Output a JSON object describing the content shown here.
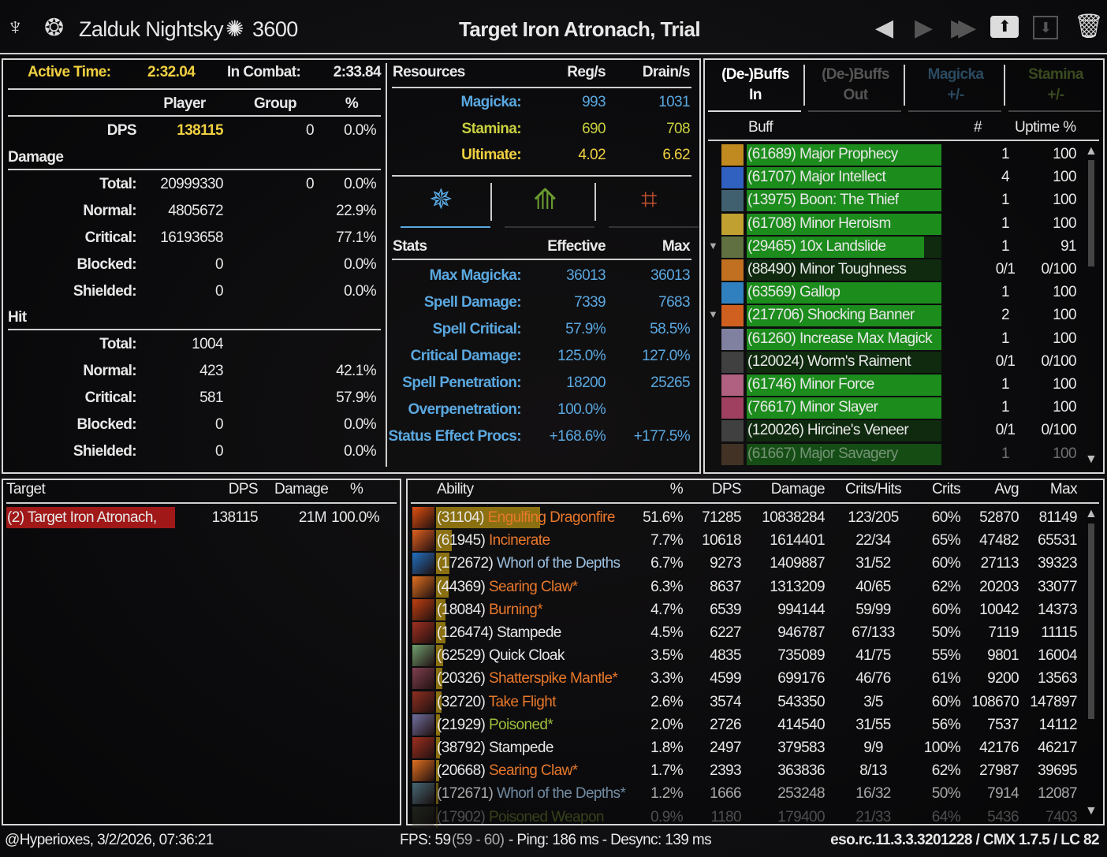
{
  "header": {
    "player_name": "Zalduk Nightsky",
    "champion_points": "3600",
    "title": "Target Iron Atronach, Trial"
  },
  "combat": {
    "active_time_label": "Active Time:",
    "active_time": "2:32.04",
    "in_combat_label": "In Combat:",
    "in_combat": "2:33.84"
  },
  "stats_columns": {
    "player": "Player",
    "group": "Group",
    "pct": "%"
  },
  "dps_row": {
    "label": "DPS",
    "player": "138115",
    "group": "0",
    "pct": "0.0%"
  },
  "damage_section": "Damage",
  "damage_rows": [
    {
      "label": "Total:",
      "player": "20999330",
      "group": "0",
      "pct": "0.0%"
    },
    {
      "label": "Normal:",
      "player": "4805672",
      "group": "",
      "pct": "22.9%"
    },
    {
      "label": "Critical:",
      "player": "16193658",
      "group": "",
      "pct": "77.1%"
    },
    {
      "label": "Blocked:",
      "player": "0",
      "group": "",
      "pct": "0.0%"
    },
    {
      "label": "Shielded:",
      "player": "0",
      "group": "",
      "pct": "0.0%"
    }
  ],
  "hit_section": "Hit",
  "hit_rows": [
    {
      "label": "Total:",
      "player": "1004",
      "group": "",
      "pct": ""
    },
    {
      "label": "Normal:",
      "player": "423",
      "group": "",
      "pct": "42.1%"
    },
    {
      "label": "Critical:",
      "player": "581",
      "group": "",
      "pct": "57.9%"
    },
    {
      "label": "Blocked:",
      "player": "0",
      "group": "",
      "pct": "0.0%"
    },
    {
      "label": "Shielded:",
      "player": "0",
      "group": "",
      "pct": "0.0%"
    }
  ],
  "resources": {
    "title": "Resources",
    "reg": "Reg/s",
    "drain": "Drain/s",
    "rows": [
      {
        "label": "Magicka:",
        "reg": "993",
        "drain": "1031",
        "color": "#5aa8e0"
      },
      {
        "label": "Stamina:",
        "reg": "690",
        "drain": "708",
        "color": "#c8d040"
      },
      {
        "label": "Ultimate:",
        "reg": "4.02",
        "drain": "6.62",
        "color": "#f0d040"
      }
    ]
  },
  "stat_tabs": [
    {
      "icon": "magicka-stat-icon",
      "color": "#5aa8e0"
    },
    {
      "icon": "stamina-stat-icon",
      "color": "#6a9a30"
    },
    {
      "icon": "health-stat-icon",
      "color": "#c05030"
    }
  ],
  "stats": {
    "title": "Stats",
    "effective": "Effective",
    "max": "Max",
    "rows": [
      {
        "label": "Max Magicka:",
        "effective": "36013",
        "max": "36013"
      },
      {
        "label": "Spell Damage:",
        "effective": "7339",
        "max": "7683"
      },
      {
        "label": "Spell Critical:",
        "effective": "57.9%",
        "max": "58.5%"
      },
      {
        "label": "Critical Damage:",
        "effective": "125.0%",
        "max": "127.0%"
      },
      {
        "label": "Spell Penetration:",
        "effective": "18200",
        "max": "25265"
      },
      {
        "label": "Overpenetration:",
        "effective": "100.0%",
        "max": ""
      },
      {
        "label": "Status Effect Procs:",
        "effective": "+168.6%",
        "max": "+177.5%"
      }
    ]
  },
  "buff_tabs": [
    {
      "line1": "(De-)Buffs",
      "line2": "In",
      "color": "#ffffff",
      "active": true
    },
    {
      "line1": "(De-)Buffs",
      "line2": "Out",
      "color": "#555555",
      "active": false
    },
    {
      "line1": "Magicka",
      "line2": "+/-",
      "color": "#2a4a60",
      "active": false
    },
    {
      "line1": "Stamina",
      "line2": "+/-",
      "color": "#3a4a20",
      "active": false
    }
  ],
  "buff_columns": {
    "buff": "Buff",
    "count": "#",
    "uptime": "Uptime %"
  },
  "buffs": [
    {
      "name": "(61689) Major Prophecy",
      "count": "1",
      "uptime": "100",
      "fill": 100,
      "icon": "#c08a20"
    },
    {
      "name": "(61707) Major Intellect",
      "count": "4",
      "uptime": "100",
      "fill": 100,
      "icon": "#3060c0"
    },
    {
      "name": "(13975) Boon: The Thief",
      "count": "1",
      "uptime": "100",
      "fill": 100,
      "icon": "#406070"
    },
    {
      "name": "(61708) Minor Heroism",
      "count": "1",
      "uptime": "100",
      "fill": 100,
      "icon": "#c0a030"
    },
    {
      "name": "(29465) 10x Landslide",
      "count": "1",
      "uptime": "91",
      "fill": 91,
      "icon": "#607040",
      "expand": true
    },
    {
      "name": "(88490) Minor Toughness",
      "count": "0/1",
      "uptime": "0/100",
      "fill": 0,
      "icon": "#c07020"
    },
    {
      "name": "(63569) Gallop",
      "count": "1",
      "uptime": "100",
      "fill": 100,
      "icon": "#3080c0"
    },
    {
      "name": "(217706) Shocking Banner",
      "count": "2",
      "uptime": "100",
      "fill": 100,
      "icon": "#d06020",
      "expand": true
    },
    {
      "name": "(61260) Increase Max Magick",
      "count": "1",
      "uptime": "100",
      "fill": 100,
      "icon": "#8080a0"
    },
    {
      "name": "(120024) Worm's Raiment",
      "count": "0/1",
      "uptime": "0/100",
      "fill": 0,
      "icon": "#404040"
    },
    {
      "name": "(61746) Minor Force",
      "count": "1",
      "uptime": "100",
      "fill": 100,
      "icon": "#b06080"
    },
    {
      "name": "(76617) Minor Slayer",
      "count": "1",
      "uptime": "100",
      "fill": 100,
      "icon": "#a04060"
    },
    {
      "name": "(120026) Hircine's Veneer",
      "count": "0/1",
      "uptime": "0/100",
      "fill": 0,
      "icon": "#404040"
    },
    {
      "name": "(61667) Major Savagery",
      "count": "1",
      "uptime": "100",
      "fill": 100,
      "icon": "#806040",
      "faded": true
    }
  ],
  "target_columns": {
    "target": "Target",
    "dps": "DPS",
    "damage": "Damage",
    "pct": "%"
  },
  "targets": [
    {
      "name": "(2) Target Iron Atronach,",
      "dps": "138115",
      "damage": "21M",
      "pct": "100.0%"
    }
  ],
  "ability_columns": {
    "ability": "Ability",
    "pct": "%",
    "dps": "DPS",
    "damage": "Damage",
    "crits_hits": "Crits/Hits",
    "crits": "Crits",
    "avg": "Avg",
    "max": "Max"
  },
  "colors": {
    "fire": "#e8782a",
    "frost": "#9cc0e0",
    "physical": "#e8e8e8",
    "poison": "#9cbf3a",
    "buff_bar": "#1c8c1c",
    "damage_bar": "#8a7010",
    "target_bar": "#a01818"
  },
  "abilities": [
    {
      "id": "(31104)",
      "name": "Engulfing Dragonfire",
      "type": "fire",
      "pct": "51.6%",
      "share": 51.6,
      "dps": "71285",
      "damage": "10838284",
      "crits_hits": "123/205",
      "crits": "60%",
      "avg": "52870",
      "max": "81149",
      "icon": "#e05010"
    },
    {
      "id": "(61945)",
      "name": "Incinerate",
      "type": "fire",
      "pct": "7.7%",
      "share": 7.7,
      "dps": "10618",
      "damage": "1614401",
      "crits_hits": "22/34",
      "crits": "65%",
      "avg": "47482",
      "max": "65531",
      "icon": "#e06020"
    },
    {
      "id": "(172672)",
      "name": "Whorl of the Depths",
      "type": "frost",
      "pct": "6.7%",
      "share": 6.7,
      "dps": "9273",
      "damage": "1409887",
      "crits_hits": "31/52",
      "crits": "60%",
      "avg": "27113",
      "max": "39323",
      "icon": "#2070c0"
    },
    {
      "id": "(44369)",
      "name": "Searing Claw*",
      "type": "fire",
      "pct": "6.3%",
      "share": 6.3,
      "dps": "8637",
      "damage": "1313209",
      "crits_hits": "40/65",
      "crits": "62%",
      "avg": "20203",
      "max": "33077",
      "icon": "#e07020"
    },
    {
      "id": "(18084)",
      "name": "Burning*",
      "type": "fire",
      "pct": "4.7%",
      "share": 4.7,
      "dps": "6539",
      "damage": "994144",
      "crits_hits": "59/99",
      "crits": "60%",
      "avg": "10042",
      "max": "14373",
      "icon": "#c04010"
    },
    {
      "id": "(126474)",
      "name": "Stampede",
      "type": "physical",
      "pct": "4.5%",
      "share": 4.5,
      "dps": "6227",
      "damage": "946787",
      "crits_hits": "67/133",
      "crits": "50%",
      "avg": "7119",
      "max": "11115",
      "icon": "#a03020"
    },
    {
      "id": "(62529)",
      "name": "Quick Cloak",
      "type": "physical",
      "pct": "3.5%",
      "share": 3.5,
      "dps": "4835",
      "damage": "735089",
      "crits_hits": "41/75",
      "crits": "55%",
      "avg": "9801",
      "max": "16004",
      "icon": "#70a070"
    },
    {
      "id": "(20326)",
      "name": "Shatterspike Mantle*",
      "type": "fire",
      "pct": "3.3%",
      "share": 3.3,
      "dps": "4599",
      "damage": "699176",
      "crits_hits": "46/76",
      "crits": "61%",
      "avg": "9200",
      "max": "13563",
      "icon": "#804050"
    },
    {
      "id": "(32720)",
      "name": "Take Flight",
      "type": "fire",
      "pct": "2.6%",
      "share": 2.6,
      "dps": "3574",
      "damage": "543350",
      "crits_hits": "3/5",
      "crits": "60%",
      "avg": "108670",
      "max": "147897",
      "icon": "#903020"
    },
    {
      "id": "(21929)",
      "name": "Poisoned*",
      "type": "poison",
      "pct": "2.0%",
      "share": 2.0,
      "dps": "2726",
      "damage": "414540",
      "crits_hits": "31/55",
      "crits": "56%",
      "avg": "7537",
      "max": "14112",
      "icon": "#7070a0"
    },
    {
      "id": "(38792)",
      "name": "Stampede",
      "type": "physical",
      "pct": "1.8%",
      "share": 1.8,
      "dps": "2497",
      "damage": "379583",
      "crits_hits": "9/9",
      "crits": "100%",
      "avg": "42176",
      "max": "46217",
      "icon": "#a03020"
    },
    {
      "id": "(20668)",
      "name": "Searing Claw*",
      "type": "fire",
      "pct": "1.7%",
      "share": 1.7,
      "dps": "2393",
      "damage": "363836",
      "crits_hits": "8/13",
      "crits": "62%",
      "avg": "27987",
      "max": "39695",
      "icon": "#e07020"
    },
    {
      "id": "(172671)",
      "name": "Whorl of the Depths*",
      "type": "frost",
      "pct": "1.2%",
      "share": 1.2,
      "dps": "1666",
      "damage": "253248",
      "crits_hits": "16/32",
      "crits": "50%",
      "avg": "7914",
      "max": "12087",
      "icon": "#6090a0",
      "dim": true
    },
    {
      "id": "(17902)",
      "name": "Poisoned Weapon",
      "type": "poison",
      "pct": "0.9%",
      "share": 0.9,
      "dps": "1180",
      "damage": "179400",
      "crits_hits": "21/33",
      "crits": "64%",
      "avg": "5436",
      "max": "7403",
      "icon": "#506040",
      "faded": true
    }
  ],
  "footer": {
    "user_time": "@Hyperioxes, 3/2/2026, 07:36:21",
    "fps": "FPS: 59",
    "fps_range": "(59 - 60)",
    "net": "- Ping: 186 ms - Desync: 139 ms",
    "version": "eso.rc.11.3.3.3201228 / CMX 1.7.5 / LC 82"
  }
}
